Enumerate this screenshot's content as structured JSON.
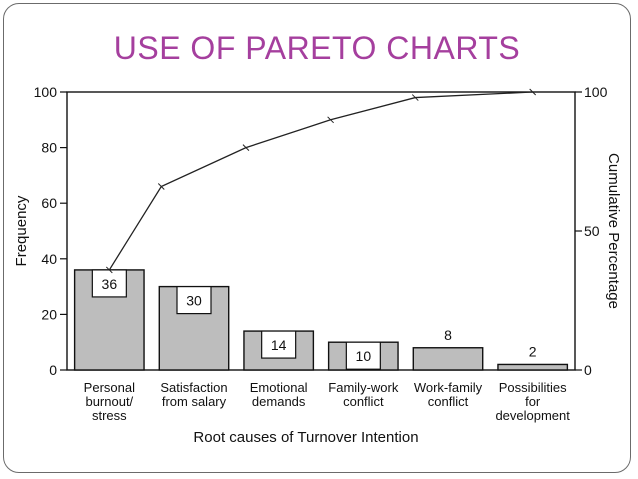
{
  "slide": {
    "title": "USE OF PARETO CHARTS",
    "accent_color": "#a53f9e"
  },
  "chart_data": {
    "type": "bar",
    "categories": [
      [
        "Personal",
        "burnout/",
        "stress"
      ],
      [
        "Satisfaction",
        "from salary"
      ],
      [
        "Emotional",
        "demands"
      ],
      [
        "Family-work",
        "conflict"
      ],
      [
        "Work-family",
        "conflict"
      ],
      [
        "Possibilities",
        "for",
        "development"
      ]
    ],
    "values": [
      36,
      30,
      14,
      10,
      8,
      2
    ],
    "value_labels": [
      "36",
      "30",
      "14",
      "10",
      "8",
      "2"
    ],
    "cumulative_percent": [
      36,
      66,
      80,
      90,
      98,
      100
    ],
    "xlabel": "Root causes of Turnover Intention",
    "ylabel": "Frequency",
    "y2label": "Cumulative Percentage",
    "ylim": [
      0,
      100
    ],
    "y2lim": [
      0,
      100
    ],
    "yticks": [
      "0",
      "20",
      "40",
      "60",
      "80",
      "100"
    ],
    "y2ticks": [
      "0",
      "50",
      "100"
    ],
    "grid": false,
    "bar_color": "#bdbdbd",
    "line_color": "#222222"
  }
}
